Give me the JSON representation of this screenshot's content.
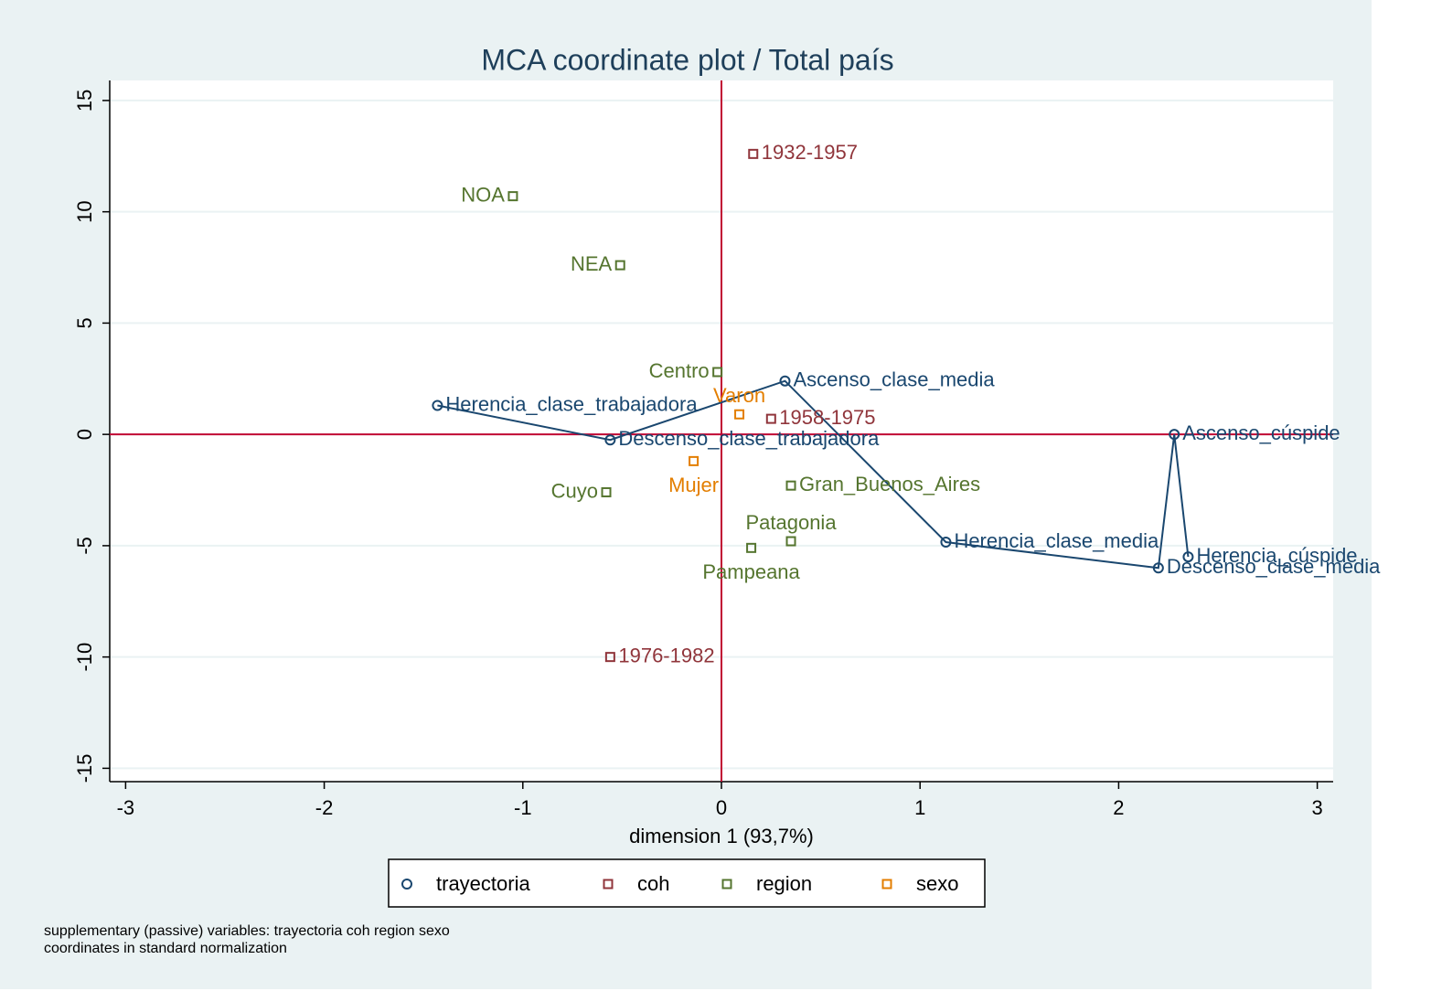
{
  "chart_data": {
    "type": "scatter",
    "title": "MCA coordinate plot / Total país",
    "xlabel": "dimension 1 (93,7%)",
    "notes": [
      "supplementary (passive) variables: trayectoria coh region sexo",
      "coordinates in standard normalization"
    ],
    "xlim": [
      -3.08,
      3.08
    ],
    "ylim": [
      -15.6,
      15.9
    ],
    "xticks": [
      -3,
      -2,
      -1,
      0,
      1,
      2,
      3
    ],
    "yticks": [
      -15,
      -10,
      -5,
      0,
      5,
      10,
      15
    ],
    "grid": true,
    "xline": 0,
    "yline": 0,
    "refline_color": "#c10534",
    "legend": "bottom",
    "series": [
      {
        "name": "trayectoria",
        "color": "#1a476f",
        "marker": "circle",
        "connect": true,
        "labels": [
          "Herencia_clase_trabajadora",
          "Descenso_clase_trabajadora",
          "Ascenso_clase_media",
          "Herencia_clase_media",
          "Descenso_clase_media",
          "Ascenso_cúspide",
          "Herencia_cúspide"
        ],
        "x": [
          -1.43,
          -0.56,
          0.32,
          1.13,
          2.2,
          2.28,
          2.35
        ],
        "y": [
          1.3,
          -0.25,
          2.4,
          -4.84,
          -6.0,
          0,
          -5.5
        ]
      },
      {
        "name": "coh",
        "color": "#90353b",
        "marker": "square",
        "labels": [
          "1932-1957",
          "1958-1975",
          "1976-1982"
        ],
        "x": [
          0.16,
          0.25,
          -0.56
        ],
        "y": [
          12.6,
          0.7,
          -10.0
        ]
      },
      {
        "name": "region",
        "color": "#55752f",
        "marker": "square",
        "labels": [
          "NOA",
          "NEA",
          "Centro",
          "Cuyo",
          "Gran_Buenos_Aires",
          "Patagonia",
          "Pampeana"
        ],
        "x": [
          -1.05,
          -0.51,
          -0.02,
          -0.58,
          0.35,
          0.35,
          0.15
        ],
        "y": [
          10.7,
          7.6,
          2.8,
          -2.6,
          -2.3,
          -4.8,
          -5.1
        ]
      },
      {
        "name": "sexo",
        "color": "#e37e00",
        "marker": "square",
        "labels": [
          "Varon",
          "Mujer"
        ],
        "x": [
          0.09,
          -0.14
        ],
        "y": [
          0.9,
          -1.2
        ]
      }
    ]
  }
}
